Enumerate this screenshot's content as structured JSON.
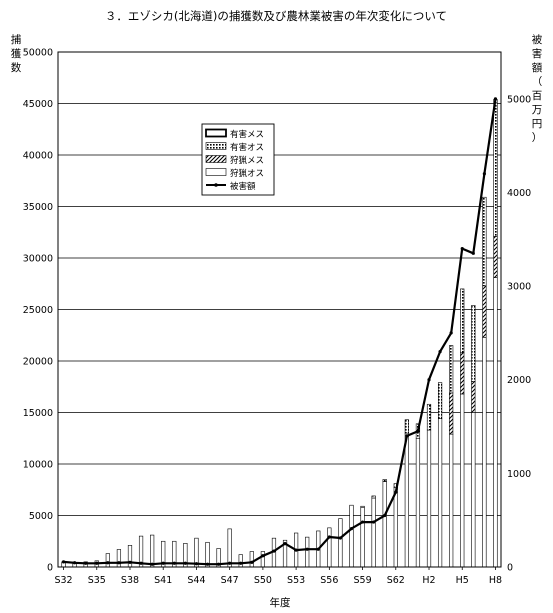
{
  "chart_data": {
    "type": "bar",
    "title": "３．エゾシカ(北海道)の捕獲数及び農林業被害の年次変化について",
    "xlabel": "年度",
    "ylabel": "捕獲数",
    "y2label": "被害額（百万円）",
    "stacked": true,
    "ylim": [
      0,
      50000
    ],
    "y2lim": [
      0,
      5500
    ],
    "y_ticks": [
      0,
      5000,
      10000,
      15000,
      20000,
      25000,
      30000,
      35000,
      40000,
      45000,
      50000
    ],
    "y2_ticks": [
      0,
      1000,
      2000,
      3000,
      4000,
      5000
    ],
    "x_tick_labels": [
      "S32",
      "S35",
      "S38",
      "S41",
      "S44",
      "S47",
      "S50",
      "S53",
      "S56",
      "S59",
      "S62",
      "H2",
      "H5",
      "H8"
    ],
    "grid": true,
    "legend_position": "top-center",
    "categories": [
      "S32",
      "S33",
      "S34",
      "S35",
      "S36",
      "S37",
      "S38",
      "S39",
      "S40",
      "S41",
      "S42",
      "S43",
      "S44",
      "S45",
      "S46",
      "S47",
      "S48",
      "S49",
      "S50",
      "S51",
      "S52",
      "S53",
      "S54",
      "S55",
      "S56",
      "S57",
      "S58",
      "S59",
      "S60",
      "S61",
      "S62",
      "S63",
      "H1",
      "H2",
      "H3",
      "H4",
      "H5",
      "H6",
      "H7",
      "H8"
    ],
    "series": [
      {
        "name": "有害メス",
        "kind": "bar",
        "values": [
          0,
          0,
          0,
          0,
          0,
          0,
          0,
          0,
          0,
          0,
          0,
          0,
          0,
          0,
          0,
          0,
          0,
          0,
          0,
          0,
          0,
          0,
          0,
          0,
          0,
          0,
          0,
          0,
          0,
          0,
          0,
          0,
          0,
          0,
          0,
          0,
          0,
          0,
          0,
          0
        ]
      },
      {
        "name": "有害オス",
        "kind": "bar",
        "values": [
          0,
          0,
          0,
          0,
          0,
          0,
          0,
          0,
          0,
          0,
          0,
          0,
          0,
          0,
          0,
          0,
          0,
          0,
          0,
          0,
          0,
          0,
          0,
          0,
          0,
          0,
          0,
          100,
          200,
          200,
          400,
          1300,
          1400,
          2500,
          3500,
          4600,
          6200,
          7400,
          8600,
          13300
        ]
      },
      {
        "name": "狩猟メス",
        "kind": "bar",
        "values": [
          0,
          0,
          0,
          0,
          0,
          0,
          0,
          0,
          0,
          0,
          0,
          0,
          0,
          0,
          0,
          0,
          0,
          0,
          0,
          0,
          0,
          0,
          0,
          0,
          0,
          0,
          0,
          0,
          0,
          0,
          0,
          0,
          0,
          0,
          0,
          4000,
          4000,
          3000,
          5000,
          4000
        ]
      },
      {
        "name": "狩猟オス",
        "kind": "bar",
        "values": [
          500,
          400,
          500,
          600,
          1300,
          1700,
          2100,
          3000,
          3100,
          2500,
          2500,
          2300,
          2800,
          2400,
          1800,
          3700,
          1200,
          1500,
          1500,
          2800,
          2600,
          3300,
          2900,
          3500,
          3800,
          4700,
          6000,
          5800,
          6700,
          8300,
          7700,
          13000,
          12500,
          13300,
          14400,
          12900,
          16800,
          15000,
          22300,
          28100
        ]
      },
      {
        "name": "被害額",
        "kind": "line",
        "axis": "secondary",
        "values": [
          55,
          45,
          40,
          40,
          45,
          45,
          50,
          40,
          30,
          40,
          40,
          40,
          35,
          30,
          30,
          40,
          40,
          50,
          120,
          170,
          250,
          180,
          190,
          190,
          320,
          310,
          410,
          480,
          480,
          550,
          800,
          1400,
          1450,
          2000,
          2300,
          2500,
          3400,
          3350,
          4200,
          5000
        ]
      }
    ]
  }
}
